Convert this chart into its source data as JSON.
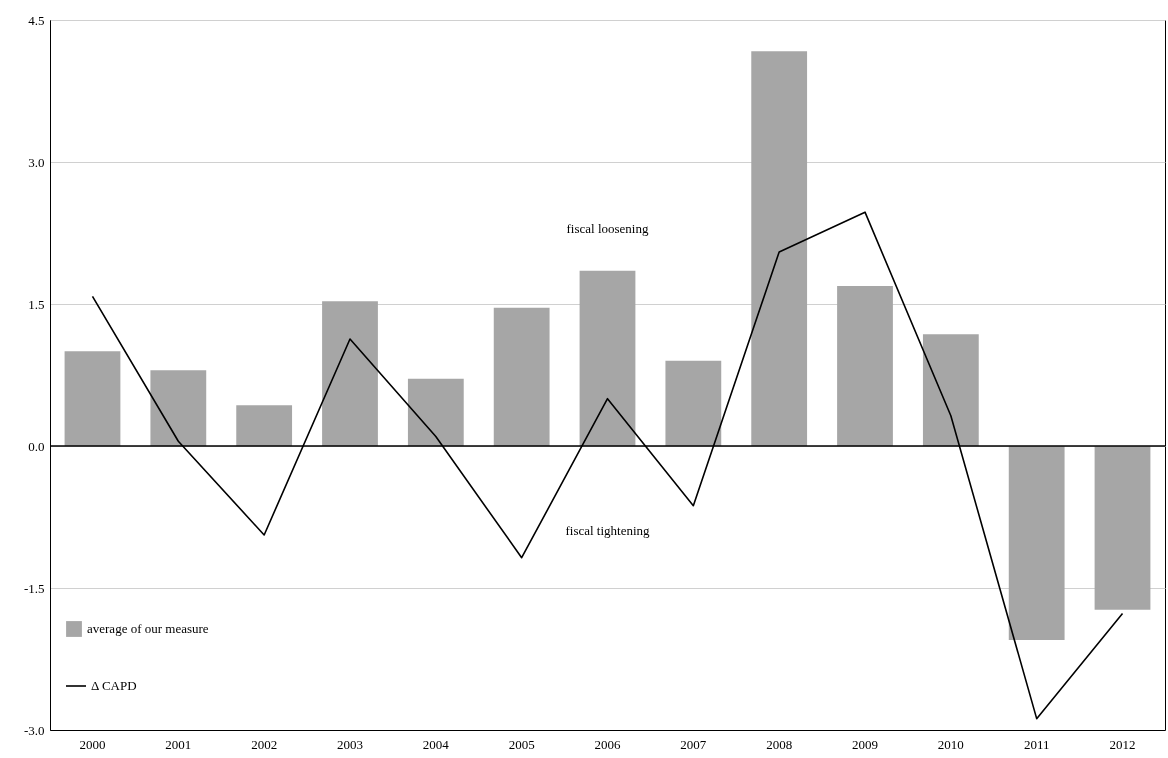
{
  "chart_data": {
    "type": "bar",
    "categories": [
      "2000",
      "2001",
      "2002",
      "2003",
      "2004",
      "2005",
      "2006",
      "2007",
      "2008",
      "2009",
      "2010",
      "2011",
      "2012"
    ],
    "series": [
      {
        "name": "average of our measure",
        "color": "#a6a6a6",
        "values": [
          1.0,
          0.8,
          0.43,
          1.53,
          0.71,
          1.46,
          1.85,
          0.9,
          4.17,
          1.69,
          1.18,
          -2.05,
          -1.73
        ]
      },
      {
        "name": "Δ CAPD",
        "type": "line",
        "color": "#000000",
        "values": [
          1.58,
          0.05,
          -0.94,
          1.13,
          0.1,
          -1.18,
          0.5,
          -0.63,
          2.05,
          2.47,
          0.32,
          -2.88,
          -1.77
        ]
      }
    ],
    "ylim": [
      -3,
      4.5
    ],
    "yticks": [
      {
        "value": -3,
        "label": "-3.0"
      },
      {
        "value": -1.5,
        "label": "-1.5"
      },
      {
        "value": 0,
        "label": "0.0"
      },
      {
        "value": 1.5,
        "label": "1.5"
      },
      {
        "value": 3,
        "label": "3.0"
      },
      {
        "value": 4.5,
        "label": "4.5"
      }
    ],
    "grid": "y",
    "legend": "bottom left",
    "ref_lines": [
      {
        "axis": "y",
        "value": 0,
        "color": "#000000"
      }
    ],
    "annotations": [
      "fiscal loosening",
      "fiscal tightening"
    ]
  }
}
